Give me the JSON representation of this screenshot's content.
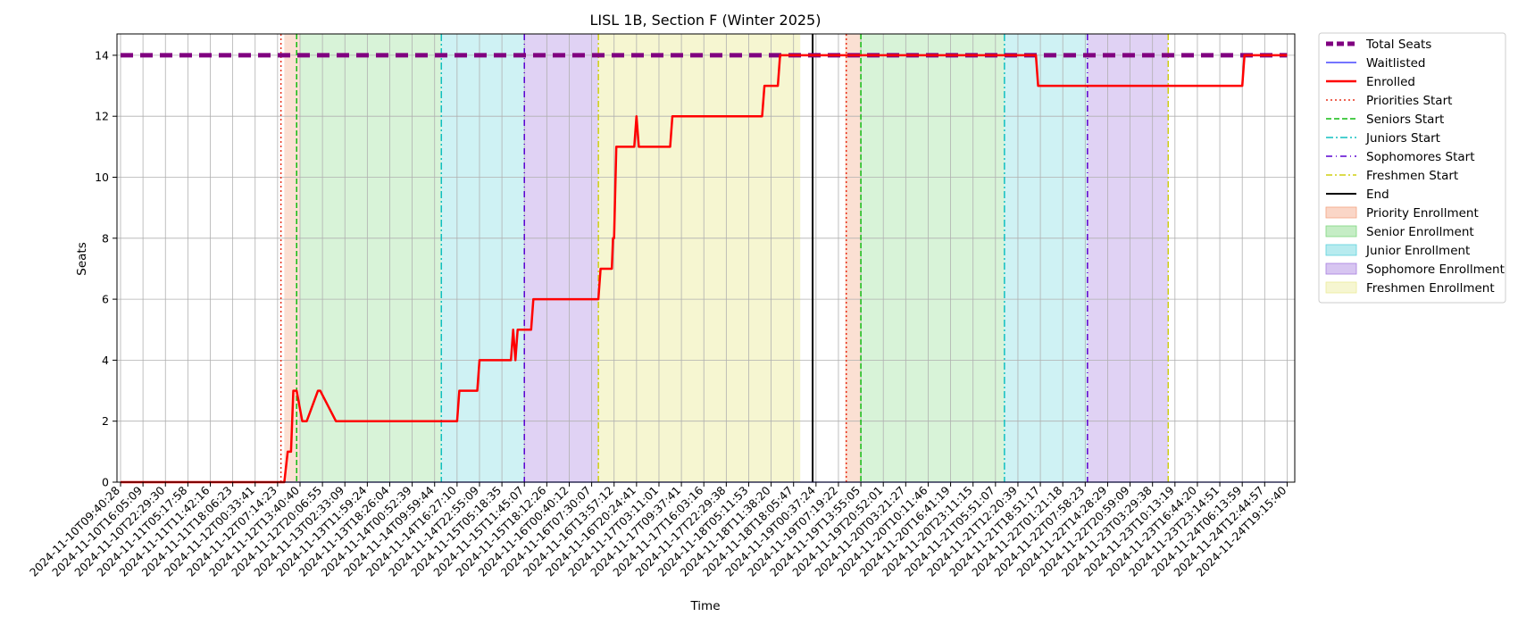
{
  "chart_data": {
    "type": "line",
    "title": "LISL 1B, Section F (Winter 2025)",
    "xlabel": "Time",
    "ylabel": "Seats",
    "ylim": [
      0,
      14.7
    ],
    "y_ticks": [
      0,
      2,
      4,
      6,
      8,
      10,
      12,
      14
    ],
    "grid": true,
    "legend_placement": "outside right, top",
    "x_tick_labels": [
      "2024-11-10T09:40:28",
      "2024-11-10T16:05:09",
      "2024-11-10T22:29:30",
      "2024-11-11T05:17:58",
      "2024-11-11T11:42:16",
      "2024-11-11T18:06:23",
      "2024-11-12T00:33:41",
      "2024-11-12T07:14:23",
      "2024-11-12T13:40:40",
      "2024-11-12T20:06:55",
      "2024-11-13T02:33:09",
      "2024-11-13T11:59:24",
      "2024-11-13T18:26:04",
      "2024-11-14T00:52:39",
      "2024-11-14T09:59:44",
      "2024-11-14T16:27:10",
      "2024-11-14T22:55:09",
      "2024-11-15T05:18:35",
      "2024-11-15T11:45:07",
      "2024-11-15T18:12:26",
      "2024-11-16T00:40:12",
      "2024-11-16T07:30:07",
      "2024-11-16T13:57:12",
      "2024-11-16T20:24:41",
      "2024-11-17T03:11:01",
      "2024-11-17T09:37:41",
      "2024-11-17T16:03:16",
      "2024-11-17T22:29:38",
      "2024-11-18T05:11:53",
      "2024-11-18T11:38:20",
      "2024-11-18T18:05:47",
      "2024-11-19T00:37:24",
      "2024-11-19T07:19:22",
      "2024-11-19T13:55:05",
      "2024-11-19T20:52:01",
      "2024-11-20T03:21:27",
      "2024-11-20T10:11:46",
      "2024-11-20T16:41:19",
      "2024-11-20T23:11:15",
      "2024-11-21T05:51:07",
      "2024-11-21T12:20:39",
      "2024-11-21T18:51:17",
      "2024-11-22T01:21:18",
      "2024-11-22T07:58:23",
      "2024-11-22T14:28:29",
      "2024-11-22T20:59:09",
      "2024-11-23T03:29:38",
      "2024-11-23T10:13:19",
      "2024-11-23T16:44:20",
      "2024-11-23T23:14:51",
      "2024-11-24T06:13:59",
      "2024-11-24T12:44:57",
      "2024-11-24T19:15:40"
    ],
    "phases": [
      {
        "name": "Priority Enrollment",
        "color": "#f4a582",
        "from": 7.3,
        "to": 8.0,
        "opacity": 0.35
      },
      {
        "name": "Senior Enrollment",
        "color": "#7fd87f",
        "from": 8.0,
        "to": 14.3,
        "opacity": 0.3
      },
      {
        "name": "Junior Enrollment",
        "color": "#5fd3dc",
        "from": 14.3,
        "to": 18.0,
        "opacity": 0.3
      },
      {
        "name": "Sophomore Enrollment",
        "color": "#a77fe0",
        "from": 18.0,
        "to": 21.3,
        "opacity": 0.35
      },
      {
        "name": "Freshmen Enrollment",
        "color": "#ecec9a",
        "from": 21.3,
        "to": 30.3,
        "opacity": 0.45
      },
      {
        "name": "Priority Enrollment",
        "color": "#f4a582",
        "from": 32.3,
        "to": 33.0,
        "opacity": 0.35
      },
      {
        "name": "Senior Enrollment",
        "color": "#7fd87f",
        "from": 33.0,
        "to": 39.4,
        "opacity": 0.3
      },
      {
        "name": "Junior Enrollment",
        "color": "#5fd3dc",
        "from": 39.4,
        "to": 43.1,
        "opacity": 0.3
      },
      {
        "name": "Sophomore Enrollment",
        "color": "#a77fe0",
        "from": 43.1,
        "to": 46.7,
        "opacity": 0.35
      }
    ],
    "vlines": [
      {
        "name": "Priorities Start",
        "x": 7.15,
        "color": "#e8301a",
        "dash": "2,3"
      },
      {
        "name": "Seniors Start",
        "x": 7.85,
        "color": "#11bb11",
        "dash": "6,3"
      },
      {
        "name": "Juniors Start",
        "x": 14.3,
        "color": "#10bfc0",
        "dash": "8,3,2,3"
      },
      {
        "name": "Sophomores Start",
        "x": 18.0,
        "color": "#5a00d0",
        "dash": "7,4,1,4"
      },
      {
        "name": "Freshmen Start",
        "x": 21.3,
        "color": "#cfcf10",
        "dash": "7,3,2,3"
      },
      {
        "name": "End",
        "x": 30.85,
        "color": "#000000",
        "dash": ""
      },
      {
        "name": "Priorities Start",
        "x": 32.35,
        "color": "#e8301a",
        "dash": "2,3"
      },
      {
        "name": "Seniors Start",
        "x": 33.0,
        "color": "#11bb11",
        "dash": "6,3"
      },
      {
        "name": "Juniors Start",
        "x": 39.4,
        "color": "#10bfc0",
        "dash": "8,3,2,3"
      },
      {
        "name": "Sophomores Start",
        "x": 43.1,
        "color": "#5a00d0",
        "dash": "7,4,1,4"
      },
      {
        "name": "Freshmen Start",
        "x": 46.7,
        "color": "#cfcf10",
        "dash": "7,3,2,3"
      }
    ],
    "series": [
      {
        "name": "Total Seats",
        "color": "#800080",
        "x": [
          0,
          52
        ],
        "y": [
          14,
          14
        ]
      },
      {
        "name": "Waitlisted",
        "color": "#2222ff",
        "x": [
          0,
          52
        ],
        "y": [
          0,
          0
        ]
      },
      {
        "name": "Enrolled",
        "color": "#ff0000",
        "x": [
          0,
          7.3,
          7.45,
          7.6,
          7.7,
          7.85,
          8.1,
          8.3,
          8.8,
          8.9,
          9.6,
          9.7,
          12.0,
          15.0,
          15.1,
          15.9,
          16.0,
          17.4,
          17.5,
          17.6,
          17.7,
          18.3,
          18.4,
          21.3,
          21.4,
          21.9,
          21.95,
          22.0,
          22.1,
          22.9,
          23.0,
          23.1,
          24.5,
          24.6,
          28.6,
          28.7,
          29.3,
          29.4,
          30.2,
          31.0,
          32.0,
          40.8,
          40.9,
          50.0,
          50.1,
          52.0
        ],
        "y": [
          0,
          0,
          1,
          1,
          3,
          3,
          2,
          2,
          3,
          3,
          2,
          2,
          2,
          2,
          3,
          3,
          4,
          4,
          5,
          4,
          5,
          5,
          6,
          6,
          7,
          7,
          8,
          8,
          11,
          11,
          12,
          11,
          11,
          12,
          12,
          13,
          13,
          14,
          14,
          14,
          14,
          14,
          13,
          13,
          14,
          14
        ]
      }
    ],
    "legend": [
      {
        "label": "Total Seats",
        "kind": "line",
        "color": "#800080",
        "width": 5,
        "dash": "8,4"
      },
      {
        "label": "Waitlisted",
        "kind": "line",
        "color": "#2222ff",
        "width": 1.3,
        "dash": ""
      },
      {
        "label": "Enrolled",
        "kind": "line",
        "color": "#ff0000",
        "width": 2.5,
        "dash": ""
      },
      {
        "label": "Priorities Start",
        "kind": "line",
        "color": "#e8301a",
        "width": 1.5,
        "dash": "2,3"
      },
      {
        "label": "Seniors Start",
        "kind": "line",
        "color": "#11bb11",
        "width": 1.5,
        "dash": "6,3"
      },
      {
        "label": "Juniors Start",
        "kind": "line",
        "color": "#10bfc0",
        "width": 1.5,
        "dash": "8,3,2,3"
      },
      {
        "label": "Sophomores Start",
        "kind": "line",
        "color": "#5a00d0",
        "width": 1.5,
        "dash": "7,4,1,4"
      },
      {
        "label": "Freshmen Start",
        "kind": "line",
        "color": "#cfcf10",
        "width": 1.5,
        "dash": "7,3,2,3"
      },
      {
        "label": "End",
        "kind": "line",
        "color": "#000000",
        "width": 2,
        "dash": ""
      },
      {
        "label": "Priority Enrollment",
        "kind": "patch",
        "color": "#f4a582"
      },
      {
        "label": "Senior Enrollment",
        "kind": "patch",
        "color": "#7fd87f"
      },
      {
        "label": "Junior Enrollment",
        "kind": "patch",
        "color": "#5fd3dc"
      },
      {
        "label": "Sophomore Enrollment",
        "kind": "patch",
        "color": "#a77fe0"
      },
      {
        "label": "Freshmen Enrollment",
        "kind": "patch",
        "color": "#ecec9a"
      }
    ]
  }
}
